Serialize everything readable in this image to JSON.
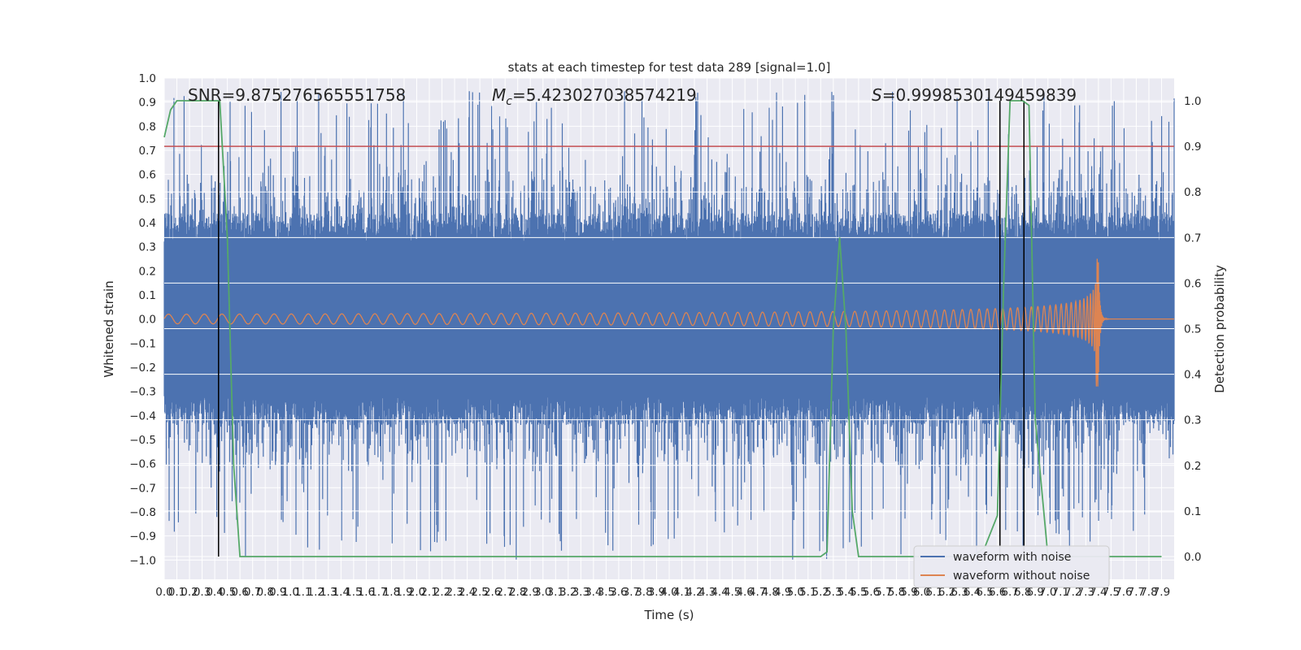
{
  "chart_data": {
    "type": "line",
    "title": "stats at each timestep for test data 289 [signal=1.0]",
    "xlabel": "Time (s)",
    "ylabel_left": "Whitened strain",
    "ylabel_right": "Detection probability",
    "xlim": [
      0.0,
      8.0
    ],
    "ylim_left": [
      -1.08,
      1.0
    ],
    "ylim_right": [
      -0.05,
      1.05
    ],
    "x_ticks": [
      "0.0",
      "0.1",
      "0.2",
      "0.3",
      "0.4",
      "0.5",
      "0.6",
      "0.7",
      "0.8",
      "0.9",
      "1.0",
      "1.1",
      "1.2",
      "1.3",
      "1.4",
      "1.5",
      "1.6",
      "1.7",
      "1.8",
      "1.9",
      "2.0",
      "2.1",
      "2.2",
      "2.3",
      "2.4",
      "2.5",
      "2.6",
      "2.7",
      "2.8",
      "2.9",
      "3.0",
      "3.1",
      "3.2",
      "3.3",
      "3.4",
      "3.5",
      "3.6",
      "3.7",
      "3.8",
      "3.9",
      "4.0",
      "4.1",
      "4.2",
      "4.3",
      "4.4",
      "4.5",
      "4.6",
      "4.7",
      "4.8",
      "4.9",
      "5.0",
      "5.1",
      "5.2",
      "5.3",
      "5.4",
      "5.5",
      "5.6",
      "5.7",
      "5.8",
      "5.9",
      "6.0",
      "6.1",
      "6.2",
      "6.3",
      "6.4",
      "6.5",
      "6.6",
      "6.7",
      "6.8",
      "6.9",
      "7.0",
      "7.1",
      "7.2",
      "7.3",
      "7.4",
      "7.5",
      "7.6",
      "7.7",
      "7.8",
      "7.9"
    ],
    "y_ticks_left": [
      "1.0",
      "0.9",
      "0.8",
      "0.7",
      "0.6",
      "0.5",
      "0.4",
      "0.3",
      "0.2",
      "0.1",
      "0.0",
      "−0.1",
      "−0.2",
      "−0.3",
      "−0.4",
      "−0.5",
      "−0.6",
      "−0.7",
      "−0.8",
      "−0.9",
      "−1.0"
    ],
    "y_ticks_right": [
      "1.0",
      "0.9",
      "0.8",
      "0.7",
      "0.6",
      "0.5",
      "0.4",
      "0.3",
      "0.2",
      "0.1",
      "0.0"
    ],
    "annotations": {
      "snr": "SNR=9.875276565551758",
      "mc_symbol": "M",
      "mc_sub": "c",
      "mc_value": "=5.423027038574219",
      "s_symbol": "S",
      "s_value": "=0.9998530149459839"
    },
    "threshold": {
      "value": 0.9,
      "axis": "right",
      "color": "#c44e52"
    },
    "vertical_markers": [
      0.43,
      6.62,
      6.81
    ],
    "series": [
      {
        "name": "waveform with noise",
        "axis": "left",
        "color": "#4c72b0",
        "envelope_typical": 0.32,
        "envelope_peak": 0.9,
        "y_range": [
          -1.0,
          0.91
        ]
      },
      {
        "name": "waveform without noise",
        "axis": "left",
        "color": "#dd8452",
        "chirp_start_amplitude": 0.02,
        "merger_time": 7.4,
        "merger_peak": 0.25,
        "merger_trough": -0.28
      },
      {
        "name": "detection probability",
        "axis": "right",
        "color": "#55a868",
        "x": [
          0.0,
          0.05,
          0.1,
          0.2,
          0.3,
          0.38,
          0.44,
          0.5,
          0.55,
          0.6,
          5.2,
          5.25,
          5.3,
          5.35,
          5.4,
          5.45,
          5.5,
          5.55,
          6.4,
          6.5,
          6.6,
          6.65,
          6.7,
          6.75,
          6.8,
          6.85,
          6.9,
          7.0,
          7.5,
          7.9
        ],
        "y": [
          0.92,
          0.98,
          1.0,
          1.0,
          1.0,
          1.0,
          1.0,
          0.7,
          0.2,
          0.0,
          0.0,
          0.01,
          0.5,
          0.7,
          0.5,
          0.1,
          0.0,
          0.0,
          0.0,
          0.02,
          0.09,
          0.6,
          1.0,
          1.0,
          1.0,
          0.99,
          0.3,
          0.0,
          0.0,
          0.0
        ]
      }
    ],
    "legend": {
      "position": "lower-right",
      "entries": [
        {
          "label": "waveform with noise",
          "color": "#4c72b0"
        },
        {
          "label": "waveform without noise",
          "color": "#dd8452"
        }
      ]
    }
  }
}
